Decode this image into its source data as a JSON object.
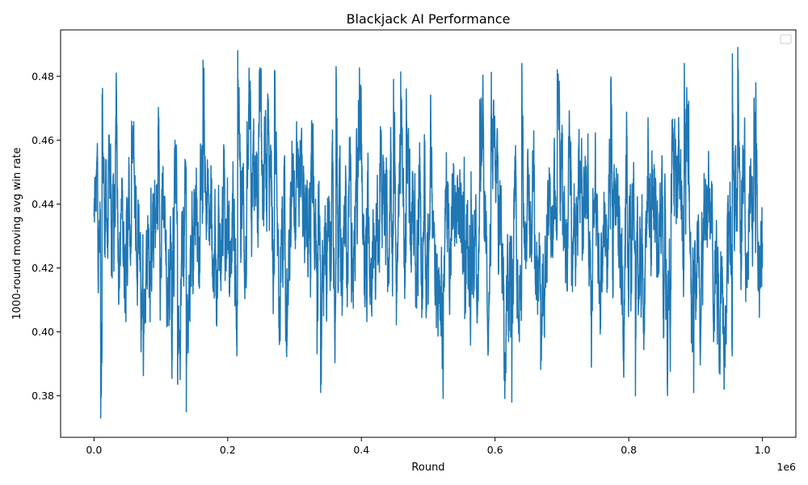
{
  "chart_data": {
    "type": "line",
    "title": "Blackjack AI Performance",
    "xlabel": "Round",
    "ylabel": "1000-round moving avg win rate",
    "x_offset_label": "1e6",
    "xlim": [
      -0.05,
      1.05
    ],
    "ylim": [
      0.367,
      0.4945
    ],
    "xticks": [
      0.0,
      0.2,
      0.4,
      0.6,
      0.8,
      1.0
    ],
    "xtick_labels": [
      "0.0",
      "0.2",
      "0.4",
      "0.6",
      "0.8",
      "1.0"
    ],
    "yticks": [
      0.38,
      0.4,
      0.42,
      0.44,
      0.46,
      0.48
    ],
    "ytick_labels": [
      "0.38",
      "0.40",
      "0.42",
      "0.44",
      "0.46",
      "0.48"
    ],
    "grid": false,
    "legend": {
      "placement": "top-right",
      "entries": []
    },
    "series": [
      {
        "color": "#1f77b4",
        "x_start": 0.0,
        "x_end": 1.0,
        "mean": 0.433,
        "min": 0.373,
        "max": 0.489,
        "extremes": [
          {
            "x": 0.01,
            "y": 0.373
          },
          {
            "x": 0.012,
            "y": 0.474
          },
          {
            "x": 0.033,
            "y": 0.478
          },
          {
            "x": 0.125,
            "y": 0.384
          },
          {
            "x": 0.138,
            "y": 0.375
          },
          {
            "x": 0.163,
            "y": 0.485
          },
          {
            "x": 0.215,
            "y": 0.488
          },
          {
            "x": 0.27,
            "y": 0.481
          },
          {
            "x": 0.339,
            "y": 0.381
          },
          {
            "x": 0.362,
            "y": 0.483
          },
          {
            "x": 0.448,
            "y": 0.479
          },
          {
            "x": 0.467,
            "y": 0.476
          },
          {
            "x": 0.522,
            "y": 0.382
          },
          {
            "x": 0.625,
            "y": 0.378
          },
          {
            "x": 0.64,
            "y": 0.484
          },
          {
            "x": 0.693,
            "y": 0.482
          },
          {
            "x": 0.773,
            "y": 0.479
          },
          {
            "x": 0.81,
            "y": 0.38
          },
          {
            "x": 0.883,
            "y": 0.484
          },
          {
            "x": 0.897,
            "y": 0.381
          },
          {
            "x": 0.955,
            "y": 0.487
          },
          {
            "x": 0.963,
            "y": 0.489
          },
          {
            "x": 0.99,
            "y": 0.478
          }
        ]
      }
    ]
  }
}
